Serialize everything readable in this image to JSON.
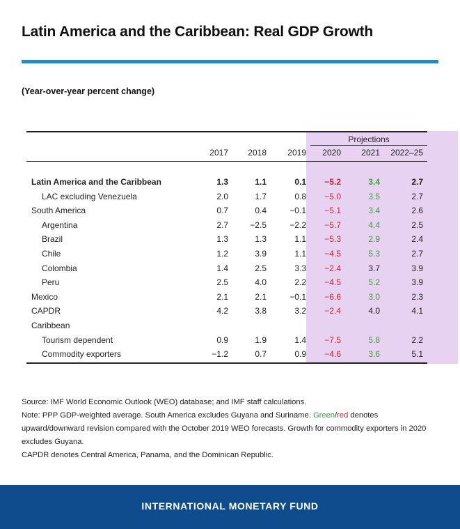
{
  "header": {
    "title": "Latin America and the Caribbean: Real GDP Growth",
    "subtitle": "(Year-over-year percent change)"
  },
  "colors": {
    "accent_rule": "#1b8ccd",
    "projection_bg": "#e7d3f1",
    "up": "#3aa335",
    "down": "#d0202e",
    "neutral": "#222222",
    "footer_bg": "#0e4c8e"
  },
  "chart_data": {
    "type": "table",
    "title": "Latin America and the Caribbean: Real GDP Growth",
    "subtitle": "(Year-over-year percent change)",
    "projections_label": "Projections",
    "columns": [
      "2017",
      "2018",
      "2019",
      "2020",
      "2021",
      "2022–25"
    ],
    "projection_columns": [
      "2020",
      "2021",
      "2022–25"
    ],
    "rows": [
      {
        "label": "Latin America and the Caribbean",
        "indent": 0,
        "bold": true,
        "values": [
          "1.3",
          "1.1",
          "0.1",
          "−5.2",
          "3.4",
          "2.7"
        ],
        "revision": [
          "",
          "",
          "",
          "down",
          "up",
          ""
        ]
      },
      {
        "label": "LAC excluding Venezuela",
        "indent": 1,
        "bold": false,
        "values": [
          "2.0",
          "1.7",
          "0.8",
          "−5.0",
          "3.5",
          "2.7"
        ],
        "revision": [
          "",
          "",
          "",
          "down",
          "up",
          ""
        ]
      },
      {
        "label": "South America",
        "indent": 0,
        "bold": false,
        "values": [
          "0.7",
          "0.4",
          "−0.1",
          "−5.1",
          "3.4",
          "2.6"
        ],
        "revision": [
          "",
          "",
          "",
          "down",
          "up",
          ""
        ]
      },
      {
        "label": "Argentina",
        "indent": 1,
        "bold": false,
        "values": [
          "2.7",
          "−2.5",
          "−2.2",
          "−5.7",
          "4.4",
          "2.5"
        ],
        "revision": [
          "",
          "",
          "",
          "down",
          "up",
          ""
        ]
      },
      {
        "label": "Brazil",
        "indent": 1,
        "bold": false,
        "values": [
          "1.3",
          "1.3",
          "1.1",
          "−5.3",
          "2.9",
          "2.4"
        ],
        "revision": [
          "",
          "",
          "",
          "down",
          "up",
          ""
        ]
      },
      {
        "label": "Chile",
        "indent": 1,
        "bold": false,
        "values": [
          "1.2",
          "3.9",
          "1.1",
          "−4.5",
          "5.3",
          "2.7"
        ],
        "revision": [
          "",
          "",
          "",
          "down",
          "up",
          ""
        ]
      },
      {
        "label": "Colombia",
        "indent": 1,
        "bold": false,
        "values": [
          "1.4",
          "2.5",
          "3.3",
          "−2.4",
          "3.7",
          "3.9"
        ],
        "revision": [
          "",
          "",
          "",
          "down",
          "",
          ""
        ]
      },
      {
        "label": "Peru",
        "indent": 1,
        "bold": false,
        "values": [
          "2.5",
          "4.0",
          "2.2",
          "−4.5",
          "5.2",
          "3.9"
        ],
        "revision": [
          "",
          "",
          "",
          "down",
          "up",
          ""
        ]
      },
      {
        "label": "Mexico",
        "indent": 0,
        "bold": false,
        "values": [
          "2.1",
          "2.1",
          "−0.1",
          "−6.6",
          "3.0",
          "2.3"
        ],
        "revision": [
          "",
          "",
          "",
          "down",
          "up",
          ""
        ]
      },
      {
        "label": "CAPDR",
        "indent": 0,
        "bold": false,
        "values": [
          "4.2",
          "3.8",
          "3.2",
          "−2.4",
          "4.0",
          "4.1"
        ],
        "revision": [
          "",
          "",
          "",
          "down",
          "",
          ""
        ]
      },
      {
        "label": "Caribbean",
        "indent": 0,
        "bold": false,
        "values": [
          "",
          "",
          "",
          "",
          "",
          ""
        ],
        "revision": [
          "",
          "",
          "",
          "",
          "",
          ""
        ]
      },
      {
        "label": "Tourism dependent",
        "indent": 1,
        "bold": false,
        "values": [
          "0.9",
          "1.9",
          "1.4",
          "−7.5",
          "5.8",
          "2.2"
        ],
        "revision": [
          "",
          "",
          "",
          "down",
          "up",
          ""
        ]
      },
      {
        "label": "Commodity exporters",
        "indent": 1,
        "bold": false,
        "values": [
          "−1.2",
          "0.7",
          "0.9",
          "−4.6",
          "3.6",
          "5.1"
        ],
        "revision": [
          "",
          "",
          "",
          "down",
          "up",
          ""
        ]
      }
    ]
  },
  "notes": {
    "source": "Source: IMF World Economic Outlook (WEO) database; and IMF staff calculations.",
    "note_prefix": "Note: PPP GDP-weighted average. South America excludes Guyana and Suriname. ",
    "green_word": "Green",
    "slash": "/",
    "red_word": "red",
    "note_suffix": " denotes upward/downward revision compared with the October 2019 WEO forecasts. Growth for commodity exporters in 2020 excludes Guyana.",
    "capdr": "CAPDR denotes Central America, Panama, and the Dominican Republic."
  },
  "footer": {
    "org": "INTERNATIONAL MONETARY FUND"
  }
}
